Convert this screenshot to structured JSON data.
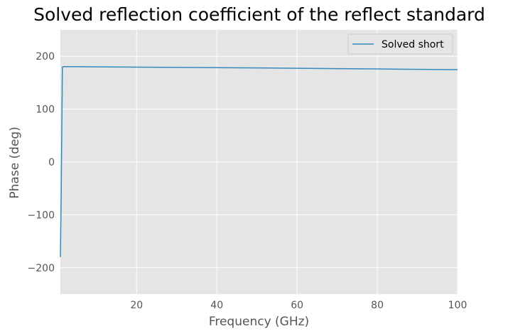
{
  "chart_data": {
    "type": "line",
    "title": "Solved reflection coefficient of the reflect standard",
    "xlabel": "Frequency (GHz)",
    "ylabel": "Phase (deg)",
    "xlim": [
      1,
      100
    ],
    "ylim": [
      -250,
      250
    ],
    "xticks": [
      20,
      40,
      60,
      80,
      100
    ],
    "yticks": [
      -200,
      -100,
      0,
      100,
      200
    ],
    "xtick_labels": [
      "20",
      "40",
      "60",
      "80",
      "100"
    ],
    "ytick_labels": [
      "−200",
      "−100",
      "0",
      "100",
      "200"
    ],
    "grid": true,
    "legend_position": "top-right",
    "series": [
      {
        "name": "Solved short",
        "color": "#348abd",
        "x": [
          1,
          1.2,
          1.5,
          2,
          5,
          10,
          20,
          30,
          40,
          50,
          60,
          70,
          80,
          85,
          90,
          100
        ],
        "y": [
          -180,
          -60,
          179.5,
          180.5,
          180.3,
          180,
          179.5,
          178.9,
          178.5,
          177.9,
          177.3,
          176.6,
          176.0,
          175.5,
          175.2,
          174.7
        ]
      }
    ]
  }
}
